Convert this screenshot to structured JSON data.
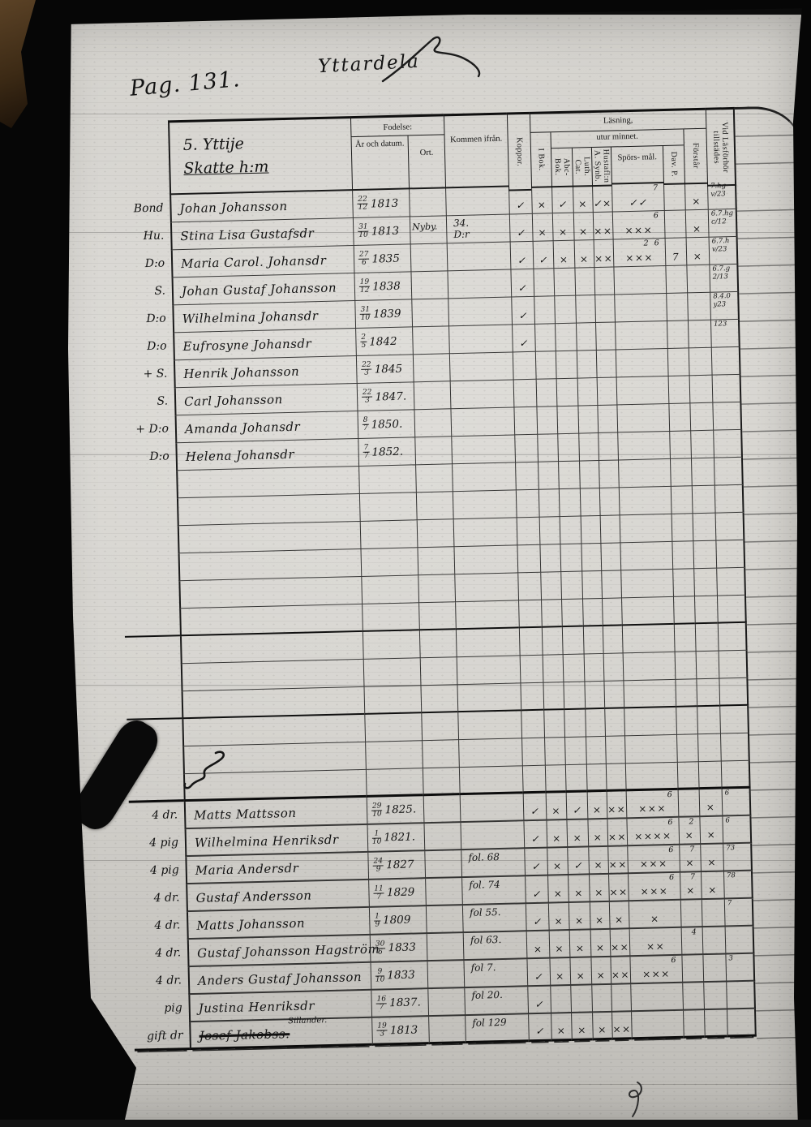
{
  "annotations": {
    "page_number": "Pag. 131.",
    "village": "Yttardela"
  },
  "household": {
    "line1": "5. Yttije",
    "line2": "Skatte h:m"
  },
  "table": {
    "headers": {
      "fodelse": "Fodelse:",
      "ar_och_datum": "År och datum.",
      "ort": "Ort.",
      "kommen_ifran": "Kommen ifrån.",
      "koppor": "Koppor.",
      "lasning": "Läsning,",
      "utur_minnet": "utur minnet.",
      "i_bok": "I Bok.",
      "abc_bok": "Abc- Bok.",
      "luth_cat": "Luth. Cat.",
      "hustaflan": "Hustafl:n A. Synb.",
      "sporsmal": "Spörs- mål.",
      "dav_p": "Dav. P.",
      "forstar": "Förstår",
      "vid_lasforhor": "Vid Läsförhör tillstädes"
    },
    "rows_top": [
      {
        "label": "Bond",
        "name": "Johan Johansson",
        "date": "22/12 1813",
        "koppor": "✓",
        "ibok": "×",
        "abc": "✓",
        "luth": "×",
        "hust": "✓×",
        "spors": "✓✓",
        "spors_note": "7",
        "forstar": "×",
        "vid": "7.hg\nv/23"
      },
      {
        "label": "Hu.",
        "name": "Stina Lisa Gustafsdr",
        "date": "31/10 1813",
        "ort": "Nyby.",
        "kommen": "34.\nD:r",
        "koppor": "✓",
        "ibok": "×",
        "abc": "×",
        "luth": "×",
        "hust": "××",
        "spors": "×××",
        "spors_note": "6",
        "forstar": "×",
        "vid": "6.7.hg\nc/12"
      },
      {
        "label": "D:o",
        "name": "Maria Carol. Johansdr",
        "date": "27/6 1835",
        "koppor": "✓",
        "ibok": "✓",
        "abc": "×",
        "luth": "×",
        "hust": "××",
        "spors": "×××",
        "spors_note": "2  6",
        "davp": "7",
        "forstar": "×",
        "vid": "6.7.h\nv/23"
      },
      {
        "label": "S.",
        "name": "Johan Gustaf Johansson",
        "date": "19/12 1838",
        "koppor": "✓",
        "vid": "6.7.g\n2/13"
      },
      {
        "label": "D:o",
        "name": "Wilhelmina Johansdr",
        "date": "31/10 1839",
        "koppor": "✓",
        "vid": "8.4.0\ny23"
      },
      {
        "label": "D:o",
        "name": "Eufrosyne Johansdr",
        "date": "2/5 1842",
        "koppor": "✓",
        "vid": "123"
      },
      {
        "label": "+ S.",
        "name": "Henrik Johansson",
        "date": "22/3 1845"
      },
      {
        "label": "S.",
        "name": "Carl Johansson",
        "date": "22/3 1847."
      },
      {
        "label": "+ D:o",
        "name": "Amanda Johansdr",
        "date": "8/7 1850."
      },
      {
        "label": "D:o",
        "name": "Helena Johansdr",
        "date": "7/7 1852."
      }
    ],
    "empty_rows": {
      "count": 12,
      "thick_after": [
        6,
        9
      ]
    },
    "rows_bottom": [
      {
        "label": "4 dr.",
        "name": "Matts Mattsson",
        "date": "29/10 1825.",
        "koppor": "✓",
        "ibok": "×",
        "abc": "✓",
        "luth": "×",
        "hust": "××",
        "spors": "×××",
        "spors_note": "6",
        "forstar": "×",
        "vid": "6"
      },
      {
        "label": "4 pig",
        "name": "Wilhelmina Henriksdr",
        "date": "1/10 1821.",
        "koppor": "✓",
        "ibok": "×",
        "abc": "×",
        "luth": "×",
        "hust": "××",
        "spors": "××××",
        "spors_note": "6",
        "davp": "×",
        "davp_note": "2",
        "forstar": "×",
        "vid": "6"
      },
      {
        "label": "4 pig",
        "name": "Maria Andersdr",
        "date": "24/9 1827",
        "kommen": "fol. 68",
        "koppor": "✓",
        "ibok": "×",
        "abc": "✓",
        "luth": "×",
        "hust": "××",
        "spors": "×××",
        "spors_note": "6",
        "davp": "×",
        "davp_note": "7",
        "forstar": "×",
        "vid": "73"
      },
      {
        "label": "4 dr.",
        "name": "Gustaf Andersson",
        "date": "11/7 1829",
        "kommen": "fol. 74",
        "koppor": "✓",
        "ibok": "×",
        "abc": "×",
        "luth": "×",
        "hust": "××",
        "spors": "×××",
        "spors_note": "6",
        "davp": "×",
        "davp_note": "7",
        "forstar": "×",
        "vid": "78"
      },
      {
        "label": "4 dr.",
        "name": "Matts Johansson",
        "date": "1/9 1809",
        "kommen": "fol 55.",
        "koppor": "✓",
        "ibok": "×",
        "abc": "×",
        "luth": "×",
        "hust": "×",
        "spors": "×",
        "vid": "7"
      },
      {
        "label": "4 dr.",
        "name": "Gustaf Johansson Hagström",
        "date": "30/6 1833",
        "kommen": "fol 63.",
        "koppor": "×",
        "ibok": "×",
        "abc": "×",
        "luth": "×",
        "hust": "××",
        "spors": "××",
        "davp_note": "4"
      },
      {
        "label": "4 dr.",
        "name": "Anders Gustaf Johansson",
        "date": "9/10 1833",
        "kommen": "fol 7.",
        "koppor": "✓",
        "ibok": "×",
        "abc": "×",
        "luth": "×",
        "hust": "××",
        "spors": "×××",
        "spors_note": "6",
        "vid": "3"
      },
      {
        "label": "pig",
        "name": "Justina Henriksdr",
        "date": "16/7 1837.",
        "kommen": "fol 20.",
        "koppor": "✓"
      },
      {
        "label": "gift dr",
        "name": "Josef Jakobss.",
        "note": "Sillander.",
        "struck": true,
        "date": "19/3 1813",
        "kommen": "fol 129",
        "koppor": "✓",
        "ibok": "×",
        "abc": "×",
        "luth": "×",
        "hust": "××"
      }
    ]
  }
}
